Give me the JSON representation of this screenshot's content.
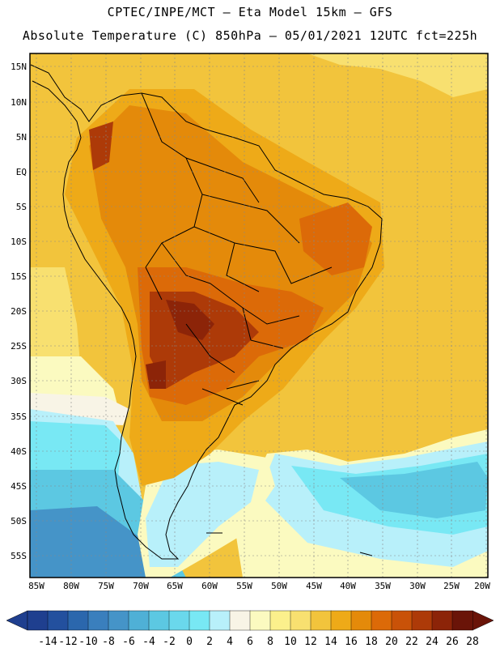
{
  "header": {
    "line1": "CPTEC/INPE/MCT –  Eta Model 15km – GFS",
    "line2": "Absolute Temperature (C) 850hPa – 05/01/2021 12UTC fct=225h"
  },
  "axes": {
    "lat_labels": [
      "15N",
      "10N",
      "5N",
      "EQ",
      "5S",
      "10S",
      "15S",
      "20S",
      "25S",
      "30S",
      "35S",
      "40S",
      "45S",
      "50S",
      "55S"
    ],
    "lon_labels": [
      "85W",
      "80W",
      "75W",
      "70W",
      "65W",
      "60W",
      "55W",
      "50W",
      "45W",
      "40W",
      "35W",
      "30W",
      "25W",
      "20W"
    ]
  },
  "colorbar": {
    "labels": [
      "-14",
      "-12",
      "-10",
      "-8",
      "-6",
      "-4",
      "-2",
      "0",
      "2",
      "4",
      "6",
      "8",
      "10",
      "12",
      "14",
      "16",
      "18",
      "20",
      "22",
      "24",
      "26",
      "28"
    ],
    "colors": [
      "#1f3f8f",
      "#23509e",
      "#2b67ad",
      "#3a7fbd",
      "#4594c8",
      "#4fb0d6",
      "#5cc8e2",
      "#6ad8ec",
      "#78e8f4",
      "#b8f0fa",
      "#f8f4e6",
      "#fbfac0",
      "#fbf08c",
      "#f8e070",
      "#f2c43c",
      "#eeaa18",
      "#e48a0a",
      "#dc6a08",
      "#c95208",
      "#ad3a08",
      "#8c2408",
      "#6a1408"
    ],
    "low_end_color": "#1f3f8f",
    "high_end_color": "#6a1408"
  },
  "regions": {
    "ocean_warm": "#f2c43c",
    "ocean_mid": "#f8e070",
    "ocean_pale": "#fbfac0",
    "neutral": "#f8f4e6",
    "cold_light": "#b8f0fa",
    "cold_cyan": "#78e8f4",
    "cold_teal": "#5cc8e2",
    "cold_blue": "#4594c8",
    "land_warm": "#eeaa18",
    "land_hot": "#e48a0a",
    "land_hotter": "#dc6a08",
    "land_hottest": "#ad3a08",
    "land_peak": "#8c2408"
  }
}
